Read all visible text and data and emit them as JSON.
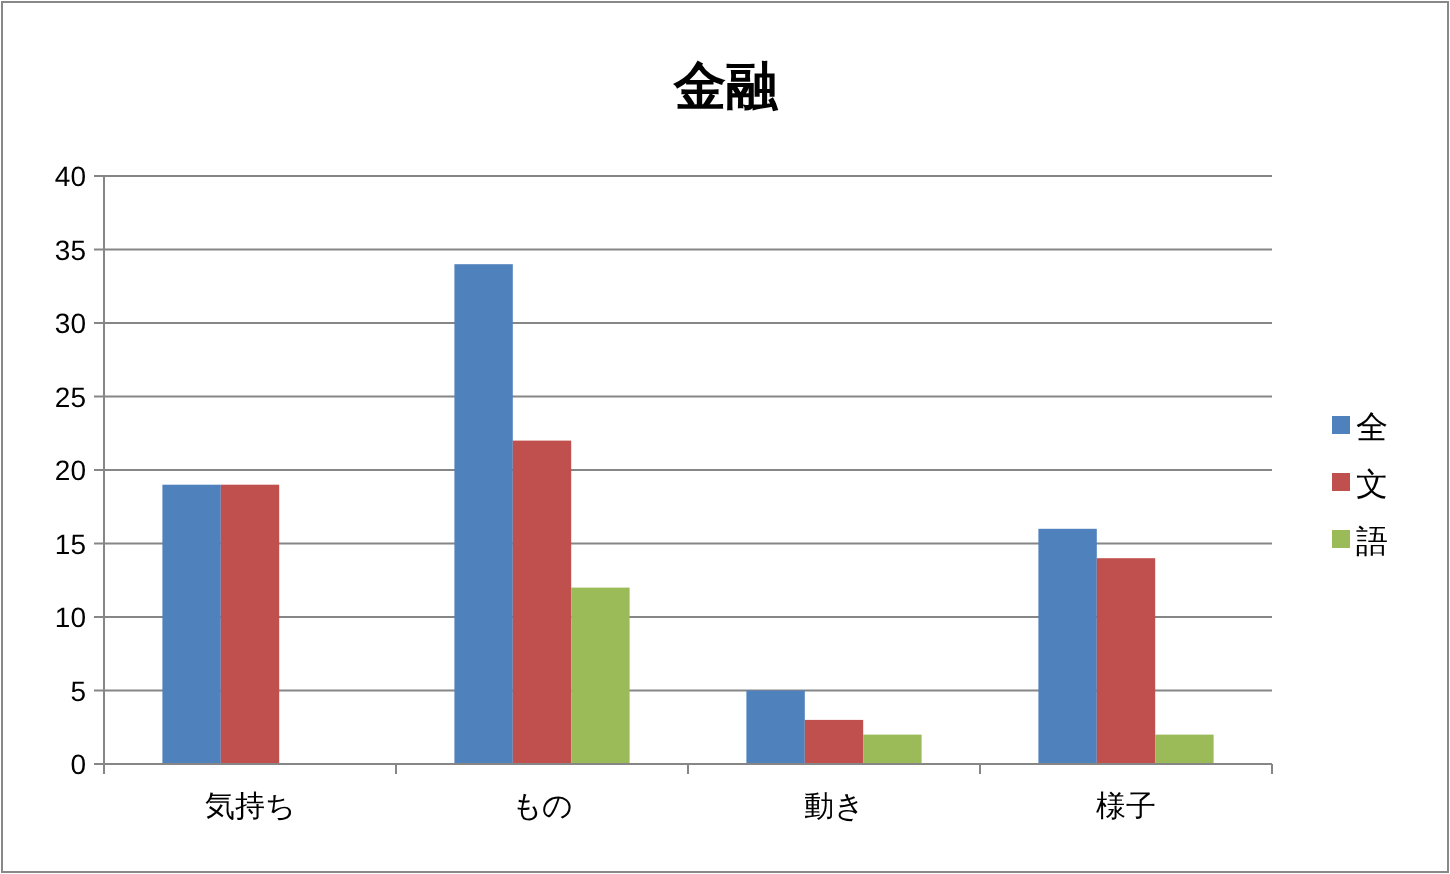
{
  "chart_data": {
    "type": "bar",
    "title": "金融",
    "categories": [
      "気持ち",
      "もの",
      "動き",
      "様子"
    ],
    "series": [
      {
        "name": "全",
        "color": "#4f81bd",
        "values": [
          19,
          34,
          5,
          16
        ]
      },
      {
        "name": "文",
        "color": "#c0504d",
        "values": [
          19,
          22,
          3,
          14
        ]
      },
      {
        "name": "語",
        "color": "#9bbb59",
        "values": [
          0,
          12,
          2,
          2
        ]
      }
    ],
    "ylim": [
      0,
      40
    ],
    "yticks": [
      0,
      5,
      10,
      15,
      20,
      25,
      30,
      35,
      40
    ],
    "grid": "y",
    "legend": "right"
  }
}
